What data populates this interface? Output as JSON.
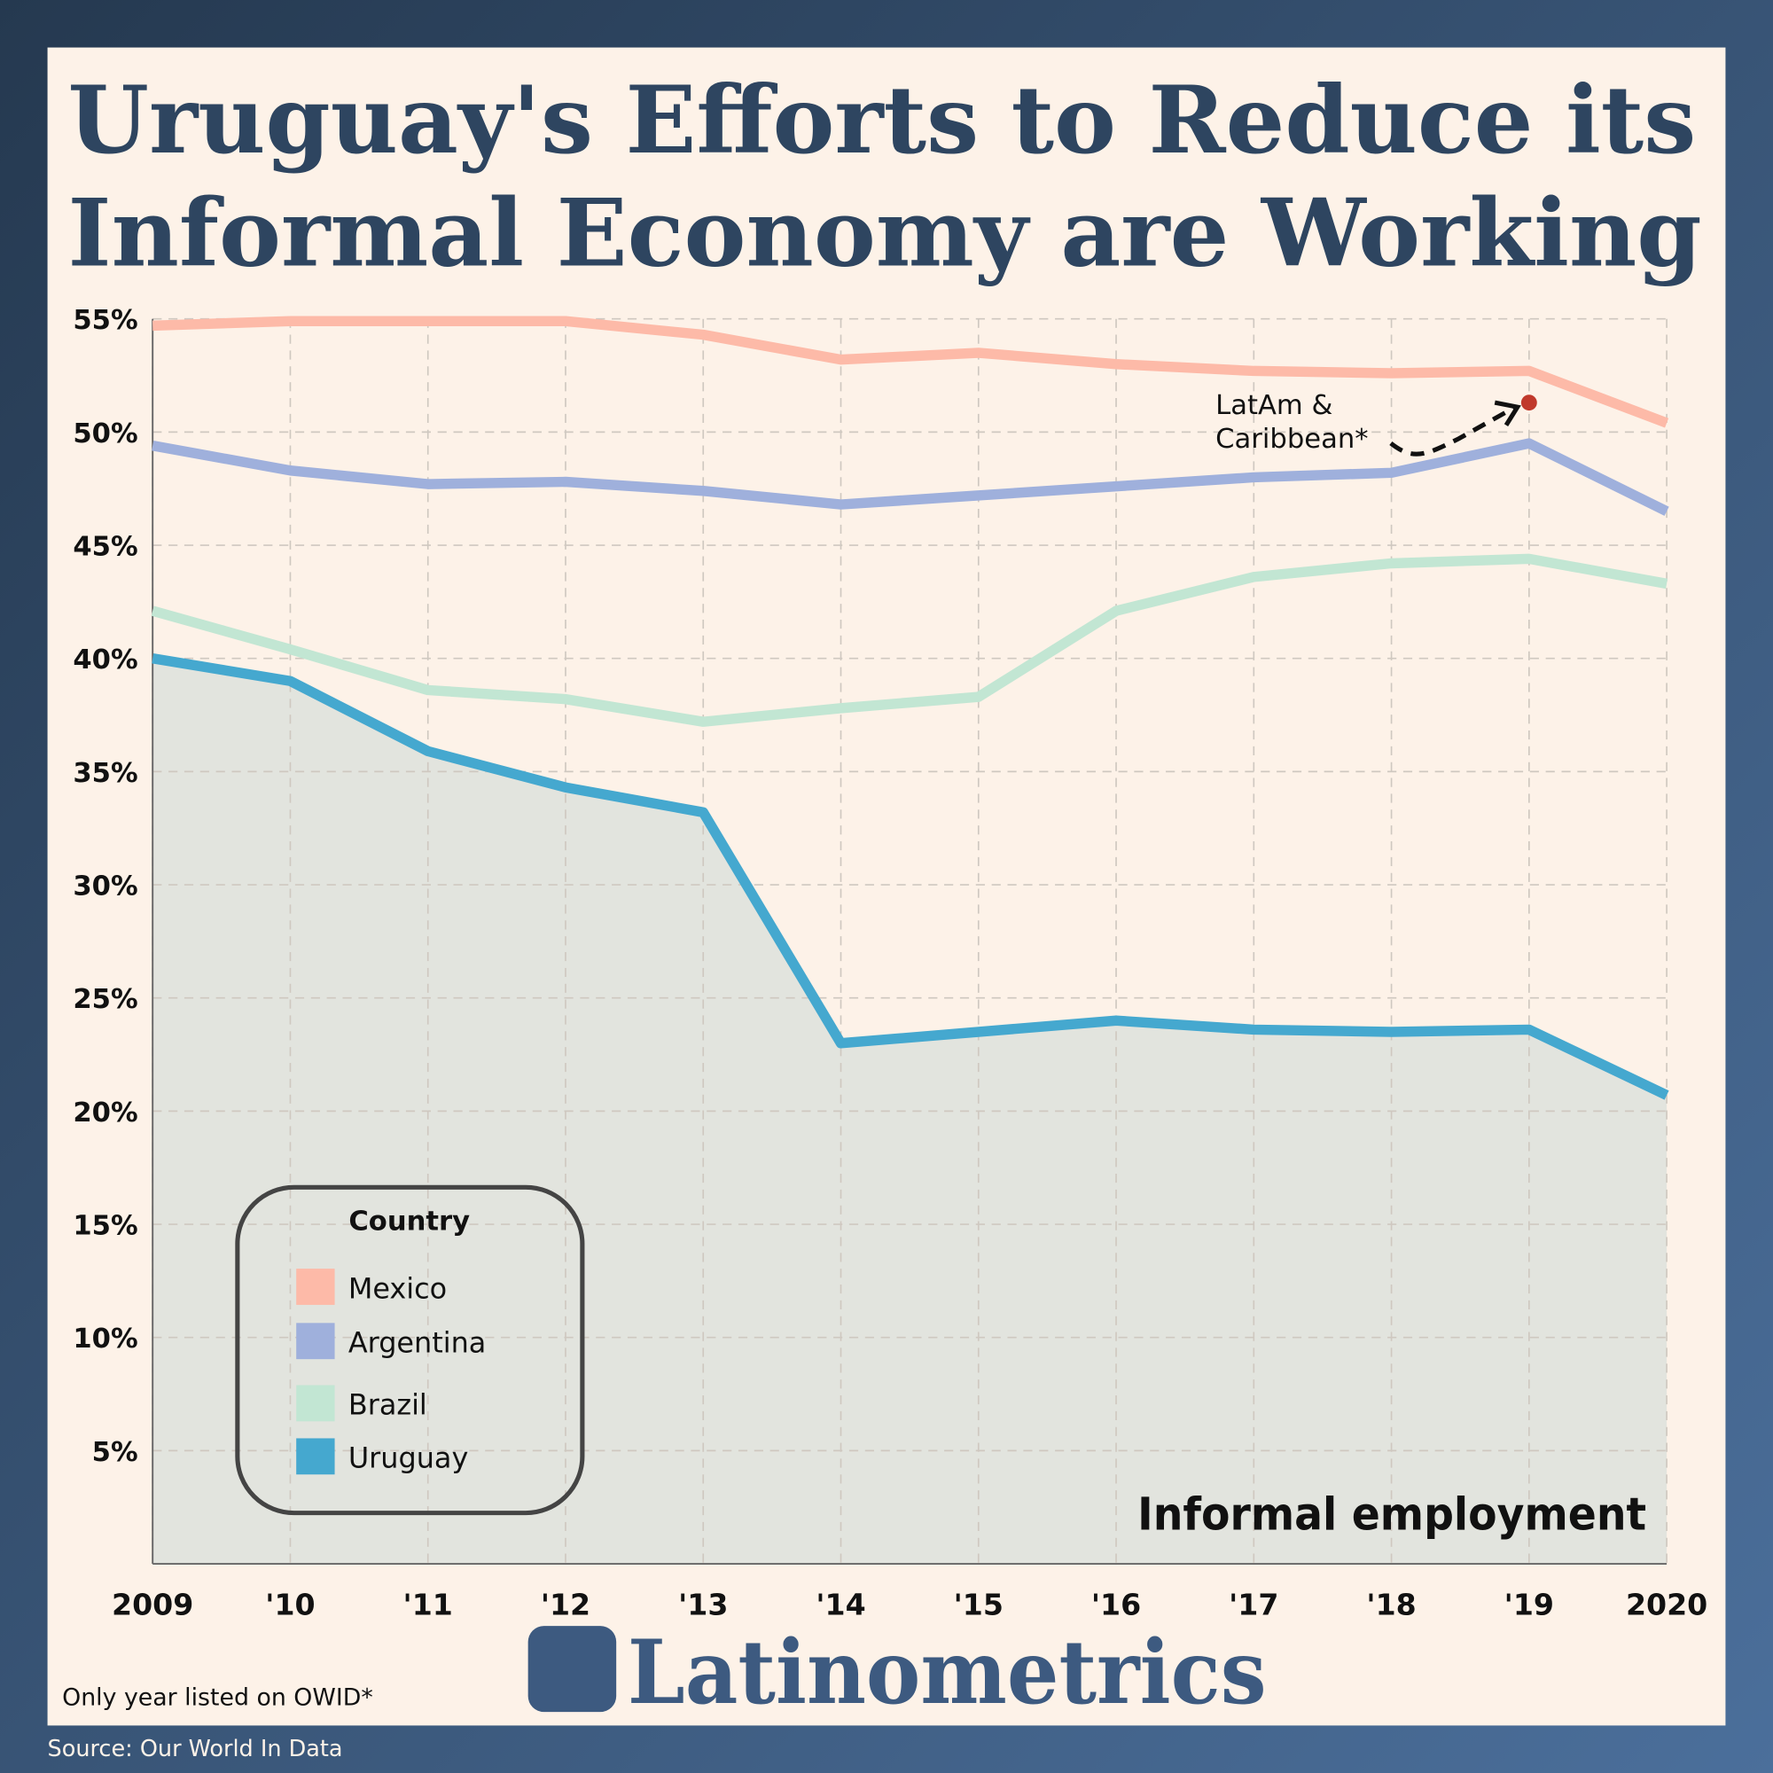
{
  "chart_data": {
    "type": "line",
    "title": [
      "Uruguay's Efforts to Reduce its",
      "Informal Economy are Working"
    ],
    "subtitle": "Informal employment",
    "x": [
      2009,
      2010,
      2011,
      2012,
      2013,
      2014,
      2015,
      2016,
      2017,
      2018,
      2019,
      2020
    ],
    "xlim": [
      2009,
      2020
    ],
    "xticks": [
      {
        "value": 2009,
        "label": "2009"
      },
      {
        "value": 2010,
        "label": "'10"
      },
      {
        "value": 2011,
        "label": "'11"
      },
      {
        "value": 2012,
        "label": "'12"
      },
      {
        "value": 2013,
        "label": "'13"
      },
      {
        "value": 2014,
        "label": "'14"
      },
      {
        "value": 2015,
        "label": "'15"
      },
      {
        "value": 2016,
        "label": "'16"
      },
      {
        "value": 2017,
        "label": "'17"
      },
      {
        "value": 2018,
        "label": "'18"
      },
      {
        "value": 2019,
        "label": "'19"
      },
      {
        "value": 2020,
        "label": "2020"
      }
    ],
    "ylim": [
      0,
      55
    ],
    "yticks": [
      {
        "value": 5,
        "label": "5%"
      },
      {
        "value": 10,
        "label": "10%"
      },
      {
        "value": 15,
        "label": "15%"
      },
      {
        "value": 20,
        "label": "20%"
      },
      {
        "value": 25,
        "label": "25%"
      },
      {
        "value": 30,
        "label": "30%"
      },
      {
        "value": 35,
        "label": "35%"
      },
      {
        "value": 40,
        "label": "40%"
      },
      {
        "value": 45,
        "label": "45%"
      },
      {
        "value": 50,
        "label": "50%"
      },
      {
        "value": 55,
        "label": "55%"
      }
    ],
    "grid": true,
    "legend_title": "Country",
    "legend_position": "lower left",
    "series": [
      {
        "name": "Mexico",
        "color": "#fdbaa8",
        "values": [
          54.7,
          54.9,
          54.9,
          54.9,
          54.3,
          53.2,
          53.5,
          53.0,
          52.7,
          52.6,
          52.7,
          50.4
        ]
      },
      {
        "name": "Argentina",
        "color": "#9fb0dc",
        "values": [
          49.4,
          48.3,
          47.7,
          47.8,
          47.4,
          46.8,
          47.2,
          47.6,
          48.0,
          48.2,
          49.5,
          46.5
        ]
      },
      {
        "name": "Brazil",
        "color": "#c2e6d3",
        "values": [
          42.1,
          40.4,
          38.6,
          38.2,
          37.2,
          37.8,
          38.3,
          42.1,
          43.6,
          44.2,
          44.4,
          43.3
        ]
      },
      {
        "name": "Uruguay",
        "color": "#45a8cf",
        "area_color": "#e2e4de",
        "values": [
          40.0,
          39.0,
          35.9,
          34.3,
          33.2,
          23.0,
          23.5,
          24.0,
          23.6,
          23.5,
          23.6,
          20.7
        ]
      }
    ],
    "annotation": {
      "text": [
        "LatAm &",
        "Caribbean*"
      ],
      "x": 2019,
      "value": 51.3,
      "color": "#c0392b"
    },
    "footnote": "Only year listed on OWID*",
    "source": "Source: Our World In Data",
    "brand": "Latinometrics"
  }
}
